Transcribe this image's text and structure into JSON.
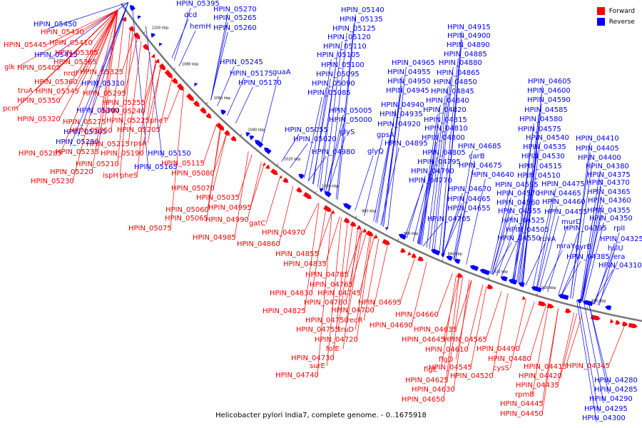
{
  "legend": {
    "forward_label": "Forward",
    "reverse_label": "Reverse",
    "forward_color": "#ff0000",
    "reverse_color": "#0000ff"
  },
  "caption": "Helicobacter pylori India7, complete genome. - 0..1675918",
  "backbone_color": "#777777",
  "ticks": [
    "1100 kbp",
    "1080 kbp",
    "1060 kbp",
    "1040 kbp",
    "1020 kbp",
    "1000 kbp",
    "980 kbp",
    "960 kbp",
    "940 kbp",
    "920 kbp",
    "900 kbp",
    "880 kbp"
  ],
  "reverse_labels": [
    "HPIN_05395",
    "dcd",
    "hemH",
    "HPIN_05270",
    "HPIN_05265",
    "HPIN_05260",
    "HPIN_05140",
    "HPIN_05135",
    "HPIN_05125",
    "HPIN_05120",
    "HPIN_05110",
    "HPIN_05105",
    "HPIN_05245",
    "HPIN_05100",
    "HPIN_05175",
    "guaA",
    "HPIN_05095",
    "HPIN_05170",
    "HPIN_05090",
    "HPIN_05085",
    "HPIN_05450",
    "HPIN_05425",
    "HPIN_05310",
    "HPIN_05300",
    "HPIN_05305",
    "HPIN_05280",
    "HPIN_05150",
    "HPIN_05165",
    "HPIN_05055",
    "HPIN_05020",
    "HPIN_05005",
    "HPIN_05000",
    "glyS",
    "HPIN_04980",
    "gpsA",
    "glyQ",
    "HPIN_04915",
    "HPIN_04900",
    "HPIN_04890",
    "HPIN_04885",
    "HPIN_04965",
    "HPIN_04880",
    "HPIN_04955",
    "HPIN_04865",
    "HPIN_04950",
    "HPIN_04850",
    "HPIN_04945",
    "HPIN_04845",
    "HPIN_04940",
    "HPIN_04840",
    "HPIN_04935",
    "HPIN_04820",
    "HPIN_04920",
    "HPIN_04815",
    "HPIN_04810",
    "HPIN_04895",
    "HPIN_04800",
    "HPIN_04805",
    "HPIN_04795",
    "HPIN_04790",
    "HPIN_04770",
    "HPIN_04685",
    "carB",
    "HPIN_04675",
    "HPIN_04640",
    "HPIN_04670",
    "HPIN_04665",
    "HPIN_04655",
    "HPIN_04705",
    "HPIN_04605",
    "HPIN_04600",
    "HPIN_04590",
    "HPIN_04585",
    "HPIN_04580",
    "HPIN_04575",
    "HPIN_04540",
    "HPIN_04535",
    "HPIN_04530",
    "HPIN_04515",
    "HPIN_04510",
    "HPIN_04595",
    "HPIN_04475",
    "HPIN_04570",
    "HPIN_04465",
    "HPIN_04560",
    "HPIN_04460",
    "HPIN_04555",
    "HPIN_04455",
    "HPIN_04525",
    "murD",
    "HPIN_04505",
    "HPIN_04395",
    "HPIN_04550",
    "ruvA",
    "mraY",
    "gyrB",
    "HPIN_04385",
    "HPIN_04410",
    "HPIN_04405",
    "HPIN_04400",
    "HPIN_04380",
    "HPIN_04375",
    "HPIN_04370",
    "HPIN_04365",
    "HPIN_04360",
    "HPIN_04355",
    "HPIN_04350",
    "rplI",
    "HPIN_04325",
    "hslU",
    "era",
    "HPIN_04310",
    "HPIN_04280",
    "HPIN_04285",
    "HPIN_04290",
    "HPIN_04295",
    "HPIN_04300"
  ],
  "forward_labels": [
    "HPIN_05430",
    "HPIN_05445",
    "HPIN_05410",
    "HPIN_05385",
    "glk",
    "HPIN_05405",
    "HPIN_05365",
    "nrdF",
    "HPIN_05325",
    "HPIN_05360",
    "truA",
    "HPIN_05345",
    "HPIN_05295",
    "pcm",
    "HPIN_05350",
    "HPIN_05255",
    "HPIN_05240",
    "HPIN_05320",
    "HPIN_05275",
    "HPIN_05225",
    "HPIN_05250",
    "HPIN_05205",
    "pheT",
    "HPIN_05215",
    "rpsA",
    "HPIN_05285",
    "HPIN_05235",
    "HPIN_05190",
    "HPIN_05210",
    "HPIN_05115",
    "HPIN_05220",
    "ispH",
    "pheS",
    "HPIN_05080",
    "HPIN_05230",
    "HPIN_05070",
    "HPIN_05035",
    "HPIN_05060",
    "HPIN_04995",
    "HPIN_05065",
    "HPIN_04990",
    "HPIN_05075",
    "gatC",
    "HPIN_04970",
    "HPIN_04985",
    "HPIN_04860",
    "HPIN_04855",
    "HPIN_04835",
    "HPIN_04785",
    "HPIN_04765",
    "HPIN_04830",
    "HPIN_04745",
    "HPIN_04760",
    "HPIN_04695",
    "HPIN_04825",
    "HPIN_04700",
    "HPIN_04750",
    "recR",
    "HPIN_04690",
    "HPIN_04755",
    "truD",
    "HPIN_04720",
    "folE",
    "HPIN_04730",
    "surE",
    "HPIN_04740",
    "HPIN_04660",
    "HPIN_04635",
    "HPIN_04645",
    "HPIN_04565",
    "HPIN_04610",
    "HPIN_04490",
    "flgD",
    "HPIN_04480",
    "HPIN_04545",
    "cysS",
    "flgE",
    "HPIN_04520",
    "HPIN_04625",
    "HPIN_04630",
    "HPIN_04650",
    "HPIN_04415",
    "HPIN_04420",
    "HPIN_04435",
    "rpmB",
    "HPIN_04445",
    "HPIN_04450",
    "HPIN_04345"
  ]
}
